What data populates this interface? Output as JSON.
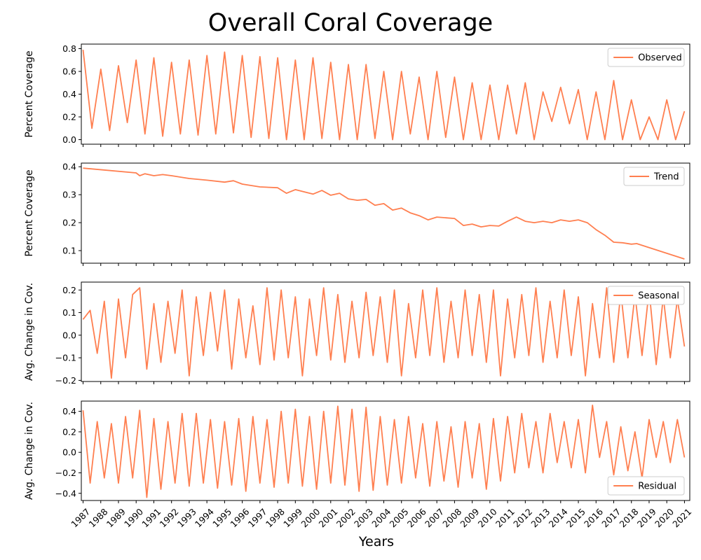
{
  "title": "Overall Coral Coverage",
  "chart_data": {
    "type": "line",
    "title": "Overall Coral Coverage",
    "xlabel": "Years",
    "x_ticks": [
      "1987",
      "1988",
      "1989",
      "1990",
      "1991",
      "1992",
      "1993",
      "1994",
      "1995",
      "1996",
      "1997",
      "1998",
      "1999",
      "2000",
      "2001",
      "2002",
      "2003",
      "2004",
      "2005",
      "2006",
      "2007",
      "2008",
      "2009",
      "2010",
      "2011",
      "2012",
      "2013",
      "2014",
      "2015",
      "2016",
      "2017",
      "2018",
      "2019",
      "2020",
      "2021"
    ],
    "xlim": [
      1986.9,
      2021.3
    ],
    "color": "#ff7f50",
    "panels": [
      {
        "name": "Observed",
        "ylabel": "Percent Coverage",
        "ylim": [
          -0.04,
          0.84
        ],
        "yticks": [
          0.0,
          0.2,
          0.4,
          0.6,
          0.8
        ],
        "ytick_labels": [
          "0.0",
          "0.2",
          "0.4",
          "0.6",
          "0.8"
        ],
        "legend": "top-right",
        "x": [
          1987.0,
          1987.5,
          1988.0,
          1988.5,
          1989.0,
          1989.5,
          1990.0,
          1990.5,
          1991.0,
          1991.5,
          1992.0,
          1992.5,
          1993.0,
          1993.5,
          1994.0,
          1994.5,
          1995.0,
          1995.5,
          1996.0,
          1996.5,
          1997.0,
          1997.5,
          1998.0,
          1998.5,
          1999.0,
          1999.5,
          2000.0,
          2000.5,
          2001.0,
          2001.5,
          2002.0,
          2002.5,
          2003.0,
          2003.5,
          2004.0,
          2004.5,
          2005.0,
          2005.5,
          2006.0,
          2006.5,
          2007.0,
          2007.5,
          2008.0,
          2008.5,
          2009.0,
          2009.5,
          2010.0,
          2010.5,
          2011.0,
          2011.5,
          2012.0,
          2012.5,
          2013.0,
          2013.5,
          2014.0,
          2014.5,
          2015.0,
          2015.5,
          2016.0,
          2016.5,
          2017.0,
          2017.5,
          2018.0,
          2018.5,
          2019.0,
          2019.5,
          2020.0,
          2020.5,
          2021.0
        ],
        "values": [
          0.79,
          0.1,
          0.62,
          0.08,
          0.65,
          0.15,
          0.7,
          0.05,
          0.72,
          0.03,
          0.68,
          0.05,
          0.7,
          0.04,
          0.74,
          0.05,
          0.77,
          0.06,
          0.74,
          0.02,
          0.73,
          0.01,
          0.72,
          0.0,
          0.7,
          0.0,
          0.72,
          0.01,
          0.68,
          0.0,
          0.66,
          0.0,
          0.66,
          0.01,
          0.6,
          0.0,
          0.6,
          0.05,
          0.55,
          0.0,
          0.6,
          0.02,
          0.55,
          0.0,
          0.5,
          0.0,
          0.48,
          0.0,
          0.48,
          0.05,
          0.5,
          0.0,
          0.42,
          0.16,
          0.46,
          0.14,
          0.44,
          0.0,
          0.42,
          0.0,
          0.52,
          0.0,
          0.35,
          0.0,
          0.2,
          0.0,
          0.35,
          0.0,
          0.25
        ]
      },
      {
        "name": "Trend",
        "ylabel": "Percent Coverage",
        "ylim": [
          0.055,
          0.413
        ],
        "yticks": [
          0.1,
          0.2,
          0.3,
          0.4
        ],
        "ytick_labels": [
          "0.1",
          "0.2",
          "0.3",
          "0.4"
        ],
        "legend": "top-right",
        "x": [
          1987.0,
          1990.0,
          1990.2,
          1990.5,
          1991.0,
          1991.5,
          1992.0,
          1993.0,
          1994.0,
          1995.0,
          1995.5,
          1996.0,
          1997.0,
          1998.0,
          1998.5,
          1999.0,
          2000.0,
          2000.5,
          2001.0,
          2001.5,
          2002.0,
          2002.5,
          2003.0,
          2003.5,
          2004.0,
          2004.5,
          2005.0,
          2005.5,
          2006.0,
          2006.5,
          2007.0,
          2008.0,
          2008.5,
          2009.0,
          2009.5,
          2010.0,
          2010.5,
          2011.0,
          2011.5,
          2012.0,
          2012.5,
          2013.0,
          2013.5,
          2014.0,
          2014.5,
          2015.0,
          2015.5,
          2016.0,
          2016.5,
          2017.0,
          2017.5,
          2018.0,
          2018.3,
          2021.0
        ],
        "values": [
          0.395,
          0.378,
          0.368,
          0.375,
          0.368,
          0.372,
          0.368,
          0.358,
          0.352,
          0.345,
          0.35,
          0.338,
          0.328,
          0.325,
          0.305,
          0.318,
          0.302,
          0.315,
          0.298,
          0.305,
          0.285,
          0.28,
          0.283,
          0.262,
          0.268,
          0.245,
          0.252,
          0.235,
          0.225,
          0.21,
          0.22,
          0.215,
          0.19,
          0.195,
          0.185,
          0.19,
          0.188,
          0.205,
          0.22,
          0.205,
          0.2,
          0.205,
          0.2,
          0.21,
          0.205,
          0.21,
          0.2,
          0.175,
          0.155,
          0.13,
          0.128,
          0.123,
          0.125,
          0.07
        ]
      },
      {
        "name": "Seasonal",
        "ylabel": "Avg. Change in Cov.",
        "ylim": [
          -0.205,
          0.235
        ],
        "yticks": [
          -0.2,
          -0.1,
          0.0,
          0.1,
          0.2
        ],
        "ytick_labels": [
          "−0.2",
          "−0.1",
          "0.0",
          "0.1",
          "0.2"
        ],
        "legend": "top-right",
        "x": [
          1987.0,
          1987.4,
          1987.8,
          1988.2,
          1988.6,
          1989.0,
          1989.4,
          1989.8,
          1990.2,
          1990.6,
          1991.0,
          1991.4,
          1991.8,
          1992.2,
          1992.6,
          1993.0,
          1993.4,
          1993.8,
          1994.2,
          1994.6,
          1995.0,
          1995.4,
          1995.8,
          1996.2,
          1996.6,
          1997.0,
          1997.4,
          1997.8,
          1998.2,
          1998.6,
          1999.0,
          1999.4,
          1999.8,
          2000.2,
          2000.6,
          2001.0,
          2001.4,
          2001.8,
          2002.2,
          2002.6,
          2003.0,
          2003.4,
          2003.8,
          2004.2,
          2004.6,
          2005.0,
          2005.4,
          2005.8,
          2006.2,
          2006.6,
          2007.0,
          2007.4,
          2007.8,
          2008.2,
          2008.6,
          2009.0,
          2009.4,
          2009.8,
          2010.2,
          2010.6,
          2011.0,
          2011.4,
          2011.8,
          2012.2,
          2012.6,
          2013.0,
          2013.4,
          2013.8,
          2014.2,
          2014.6,
          2015.0,
          2015.4,
          2015.8,
          2016.2,
          2016.6,
          2017.0,
          2017.4,
          2017.8,
          2018.2,
          2018.6,
          2019.0,
          2019.4,
          2019.8,
          2020.2,
          2020.6,
          2021.0
        ],
        "values": [
          0.07,
          0.11,
          -0.08,
          0.15,
          -0.19,
          0.16,
          -0.1,
          0.18,
          0.21,
          -0.15,
          0.14,
          -0.12,
          0.15,
          -0.08,
          0.2,
          -0.18,
          0.17,
          -0.09,
          0.19,
          -0.07,
          0.2,
          -0.15,
          0.16,
          -0.1,
          0.13,
          -0.13,
          0.21,
          -0.11,
          0.2,
          -0.1,
          0.17,
          -0.18,
          0.16,
          -0.09,
          0.21,
          -0.11,
          0.18,
          -0.12,
          0.15,
          -0.1,
          0.19,
          -0.09,
          0.17,
          -0.12,
          0.2,
          -0.18,
          0.14,
          -0.1,
          0.2,
          -0.09,
          0.21,
          -0.12,
          0.15,
          -0.1,
          0.2,
          -0.09,
          0.18,
          -0.12,
          0.2,
          -0.18,
          0.16,
          -0.1,
          0.18,
          -0.09,
          0.21,
          -0.12,
          0.15,
          -0.1,
          0.2,
          -0.09,
          0.17,
          -0.18,
          0.14,
          -0.1,
          0.21,
          -0.12,
          0.19,
          -0.1,
          0.18,
          -0.09,
          0.2,
          -0.13,
          0.17,
          -0.1,
          0.16,
          -0.05
        ]
      },
      {
        "name": "Residual",
        "ylabel": "Avg. Change in Cov.",
        "ylim": [
          -0.47,
          0.5
        ],
        "yticks": [
          -0.4,
          -0.2,
          0.0,
          0.2,
          0.4
        ],
        "ytick_labels": [
          "−0.4",
          "−0.2",
          "0.0",
          "0.2",
          "0.4"
        ],
        "legend": "bottom-right",
        "x": [
          1987.0,
          1987.4,
          1987.8,
          1988.2,
          1988.6,
          1989.0,
          1989.4,
          1989.8,
          1990.2,
          1990.6,
          1991.0,
          1991.4,
          1991.8,
          1992.2,
          1992.6,
          1993.0,
          1993.4,
          1993.8,
          1994.2,
          1994.6,
          1995.0,
          1995.4,
          1995.8,
          1996.2,
          1996.6,
          1997.0,
          1997.4,
          1997.8,
          1998.2,
          1998.6,
          1999.0,
          1999.4,
          1999.8,
          2000.2,
          2000.6,
          2001.0,
          2001.4,
          2001.8,
          2002.2,
          2002.6,
          2003.0,
          2003.4,
          2003.8,
          2004.2,
          2004.6,
          2005.0,
          2005.4,
          2005.8,
          2006.2,
          2006.6,
          2007.0,
          2007.4,
          2007.8,
          2008.2,
          2008.6,
          2009.0,
          2009.4,
          2009.8,
          2010.2,
          2010.6,
          2011.0,
          2011.4,
          2011.8,
          2012.2,
          2012.6,
          2013.0,
          2013.4,
          2013.8,
          2014.2,
          2014.6,
          2015.0,
          2015.4,
          2015.8,
          2016.2,
          2016.6,
          2017.0,
          2017.4,
          2017.8,
          2018.2,
          2018.6,
          2019.0,
          2019.4,
          2019.8,
          2020.2,
          2020.6,
          2021.0
        ],
        "values": [
          0.41,
          -0.3,
          0.3,
          -0.25,
          0.28,
          -0.3,
          0.35,
          -0.25,
          0.41,
          -0.44,
          0.33,
          -0.36,
          0.3,
          -0.3,
          0.38,
          -0.33,
          0.38,
          -0.3,
          0.32,
          -0.35,
          0.3,
          -0.32,
          0.33,
          -0.38,
          0.35,
          -0.3,
          0.32,
          -0.34,
          0.4,
          -0.3,
          0.42,
          -0.33,
          0.35,
          -0.36,
          0.4,
          -0.3,
          0.45,
          -0.32,
          0.42,
          -0.38,
          0.44,
          -0.37,
          0.35,
          -0.32,
          0.32,
          -0.3,
          0.35,
          -0.25,
          0.28,
          -0.33,
          0.3,
          -0.28,
          0.25,
          -0.34,
          0.3,
          -0.25,
          0.28,
          -0.36,
          0.33,
          -0.28,
          0.35,
          -0.2,
          0.38,
          -0.15,
          0.3,
          -0.2,
          0.38,
          -0.1,
          0.3,
          -0.15,
          0.32,
          -0.2,
          0.46,
          -0.05,
          0.3,
          -0.22,
          0.25,
          -0.18,
          0.2,
          -0.25,
          0.32,
          -0.05,
          0.3,
          -0.1,
          0.32,
          -0.05
        ]
      }
    ]
  }
}
